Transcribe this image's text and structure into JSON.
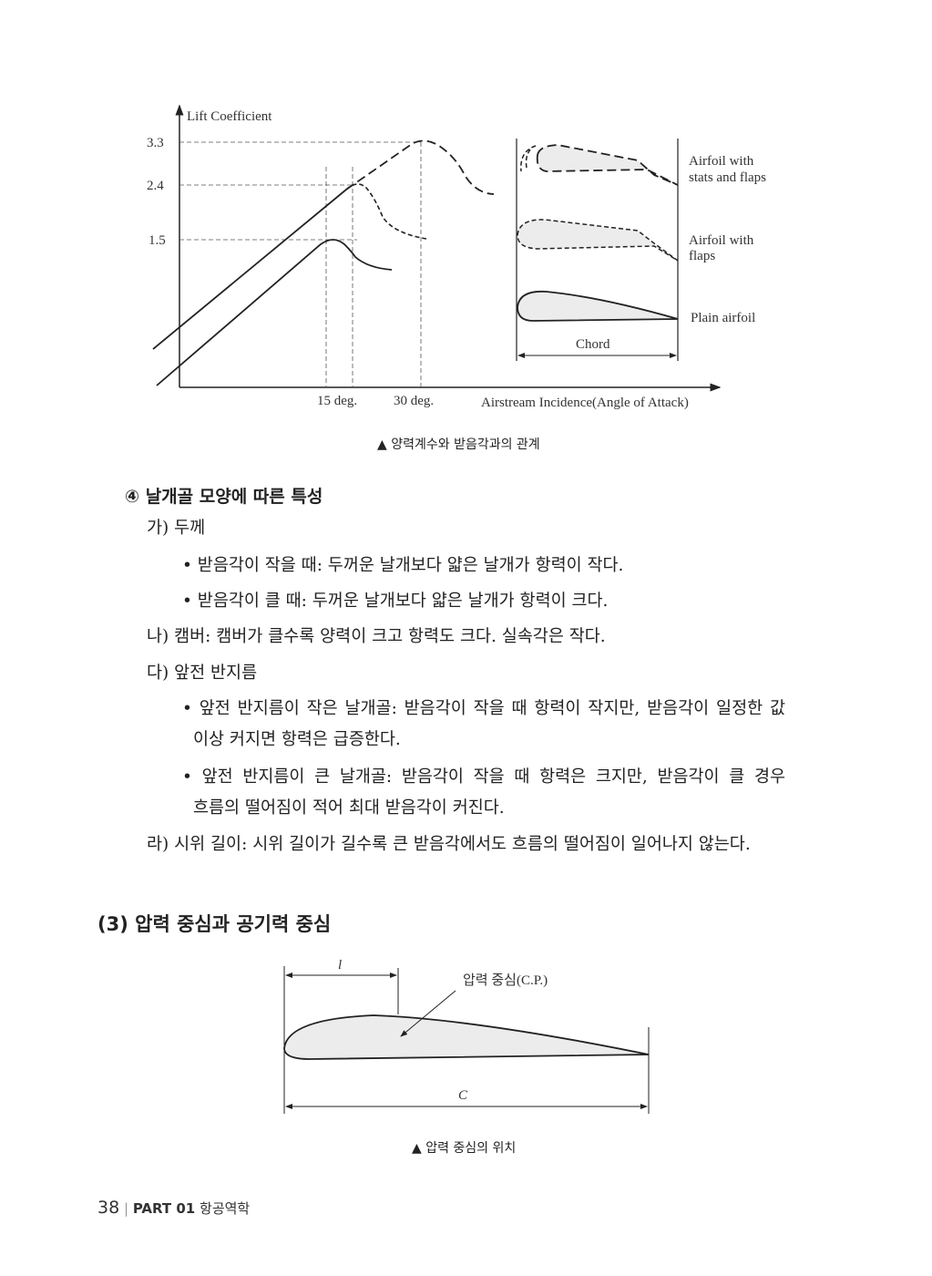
{
  "figure1": {
    "y_axis_label": "Lift Coefficient",
    "y_ticks": [
      "3.3",
      "2.4",
      "1.5"
    ],
    "x_ticks": [
      "15 deg.",
      "30 deg."
    ],
    "x_axis_label": "Airstream Incidence(Angle of Attack)",
    "airfoils": [
      {
        "label_line1": "Airfoil with",
        "label_line2": "stats and flaps"
      },
      {
        "label_line1": "Airfoil with",
        "label_line2": "flaps"
      },
      {
        "label_line1": "Plain airfoil",
        "label_line2": ""
      }
    ],
    "chord_label": "Chord",
    "caption": "▲ 양력계수와 받음각과의 관계"
  },
  "section4": {
    "heading": "④ 날개골 모양에 따른 특성",
    "a_title": "가) 두께",
    "a_bullet1": "• 받음각이 작을 때: 두꺼운 날개보다 얇은 날개가 항력이 작다.",
    "a_bullet2": "• 받음각이 클 때: 두꺼운 날개보다 얇은 날개가 항력이 크다.",
    "b_line": "나) 캠버: 캠버가 클수록 양력이 크고 항력도 크다. 실속각은 작다.",
    "c_title": "다) 앞전 반지름",
    "c_bullet1_l1": "• 앞전 반지름이 작은 날개골: 받음각이 작을 때 항력이 작지만, 받음각이 일정한 값",
    "c_bullet1_l2": "이상 커지면 항력은 급증한다.",
    "c_bullet2_l1": "• 앞전 반지름이 큰 날개골: 받음각이 작을 때 항력은 크지만, 받음각이 클 경우",
    "c_bullet2_l2": "흐름의 떨어짐이 적어 최대 받음각이 커진다.",
    "d_line": "라) 시위 길이: 시위 길이가 길수록 큰 받음각에서도 흐름의 떨어짐이 일어나지 않는다."
  },
  "section3": {
    "heading": "(3) 압력 중심과 공기력 중심"
  },
  "figure2": {
    "l_label": "l",
    "cp_label": "압력 중심(C.P.)",
    "c_label": "C",
    "caption": "▲ 압력 중심의 위치"
  },
  "footer": {
    "page_number": "38",
    "separator": "|",
    "part": "PART 01",
    "chapter": "항공역학"
  },
  "colors": {
    "airfoil_fill": "#ececec",
    "ink": "#222222"
  }
}
